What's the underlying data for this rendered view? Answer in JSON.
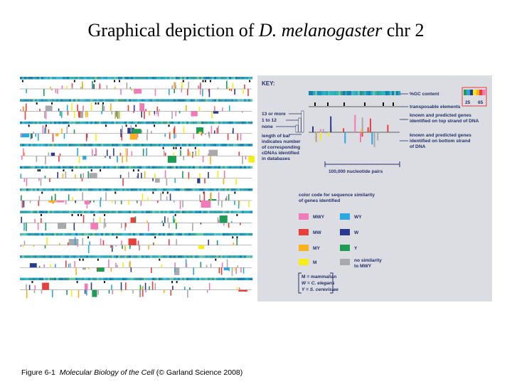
{
  "title": {
    "prefix": "Graphical depiction of ",
    "species": "D. melanogaster",
    "suffix": " chr 2"
  },
  "caption": {
    "label": "Figure 6-1",
    "book": "Molecular Biology of the Cell",
    "credit": "(© Garland Science 2008)"
  },
  "key": {
    "title": "KEY:",
    "gc_label": "%GC content",
    "gc_low": "25",
    "gc_high": "65",
    "transposable": "transposable elements",
    "top_strand": [
      "known and predicted genes",
      "identified on top strand of DNA"
    ],
    "bottom_strand": [
      "known and predicted genes",
      "identified on bottom strand",
      "of DNA"
    ],
    "legend_13": "13 or more",
    "legend_1to12": "1 to 12",
    "legend_none": "none",
    "bar_length": [
      "length of bar",
      "indicates number",
      "of corresponding",
      "cDNAs identified",
      "in databases"
    ],
    "scale": "100,000 nucleotide pairs",
    "similarity_title": [
      "color code for sequence similarity",
      "of genes identified"
    ],
    "categories": [
      {
        "code": "MWY",
        "color": "#f07bb6"
      },
      {
        "code": "WY",
        "color": "#29a9df"
      },
      {
        "code": "MW",
        "color": "#e8403a"
      },
      {
        "code": "W",
        "color": "#2b3990"
      },
      {
        "code": "MY",
        "color": "#f9b21b"
      },
      {
        "code": "Y",
        "color": "#1e9b54"
      },
      {
        "code": "M",
        "color": "#f6ec17"
      },
      {
        "code": "no similarity",
        "code2": "to MWY",
        "color": "#a7a9ac"
      }
    ],
    "abbrev": [
      "M = mammalian",
      "W = C. elegans",
      "Y = S. cerevisiae"
    ]
  },
  "colors": {
    "key_bg": "#dcdde3",
    "key_text": "#25306a",
    "gc_band": "#2c9fb0",
    "MWY": "#f07bb6",
    "WY": "#29a9df",
    "MW": "#e8403a",
    "W": "#2b3990",
    "MY": "#f9b21b",
    "Y": "#1e9b54",
    "M": "#f6ec17",
    "none": "#a7a9ac"
  }
}
